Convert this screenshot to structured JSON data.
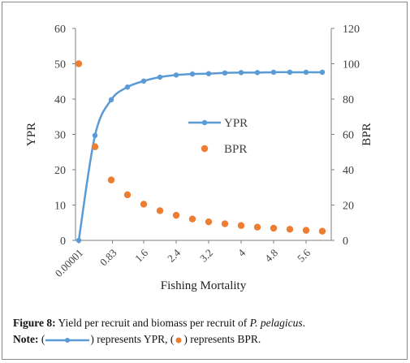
{
  "chart_data": {
    "type": "line",
    "x_ticks": [
      "0.00001",
      "0.83",
      "1.6",
      "2.4",
      "3.2",
      "4",
      "4.8",
      "5.6"
    ],
    "xlabel": "Fishing Mortality",
    "ylabel_left": "YPR",
    "ylabel_right": "BPR",
    "ylim_left": [
      0,
      60
    ],
    "ylim_right": [
      0,
      120
    ],
    "yticks_left": [
      "0",
      "10",
      "20",
      "30",
      "40",
      "50",
      "60"
    ],
    "yticks_right": [
      "0",
      "20",
      "40",
      "60",
      "80",
      "100",
      "120"
    ],
    "grid": false,
    "legend_position": "center-right",
    "series": [
      {
        "name": "YPR",
        "axis": "left",
        "color": "#5b9bd5",
        "style": "line-with-markers",
        "x": [
          1e-05,
          0.4,
          0.8,
          1.2,
          1.6,
          2.0,
          2.4,
          2.8,
          3.2,
          3.6,
          4.0,
          4.4,
          4.8,
          5.2,
          5.6,
          6.0
        ],
        "values": [
          0,
          29.7,
          39.8,
          43.4,
          45.1,
          46.2,
          46.8,
          47.1,
          47.2,
          47.4,
          47.5,
          47.5,
          47.6,
          47.6,
          47.6,
          47.6
        ]
      },
      {
        "name": "BPR",
        "axis": "right",
        "color": "#ed7d31",
        "style": "markers",
        "x": [
          1e-05,
          0.4,
          0.8,
          1.2,
          1.6,
          2.0,
          2.4,
          2.8,
          3.2,
          3.6,
          4.0,
          4.4,
          4.8,
          5.2,
          5.6,
          6.0
        ],
        "values": [
          100,
          53,
          34.2,
          25.8,
          20.5,
          16.8,
          14.2,
          12.1,
          10.5,
          9.4,
          8.4,
          7.5,
          6.9,
          6.3,
          5.7,
          5.2
        ]
      }
    ]
  },
  "caption": {
    "figure_label": "Figure 8:",
    "figure_text": " Yield per recruit and biomass per recruit of ",
    "species": "P. pelagicus",
    "period": ".",
    "note_label": "Note:",
    "open1": " (",
    "close1": ") represents YPR, (",
    "close2": ") represents BPR."
  }
}
